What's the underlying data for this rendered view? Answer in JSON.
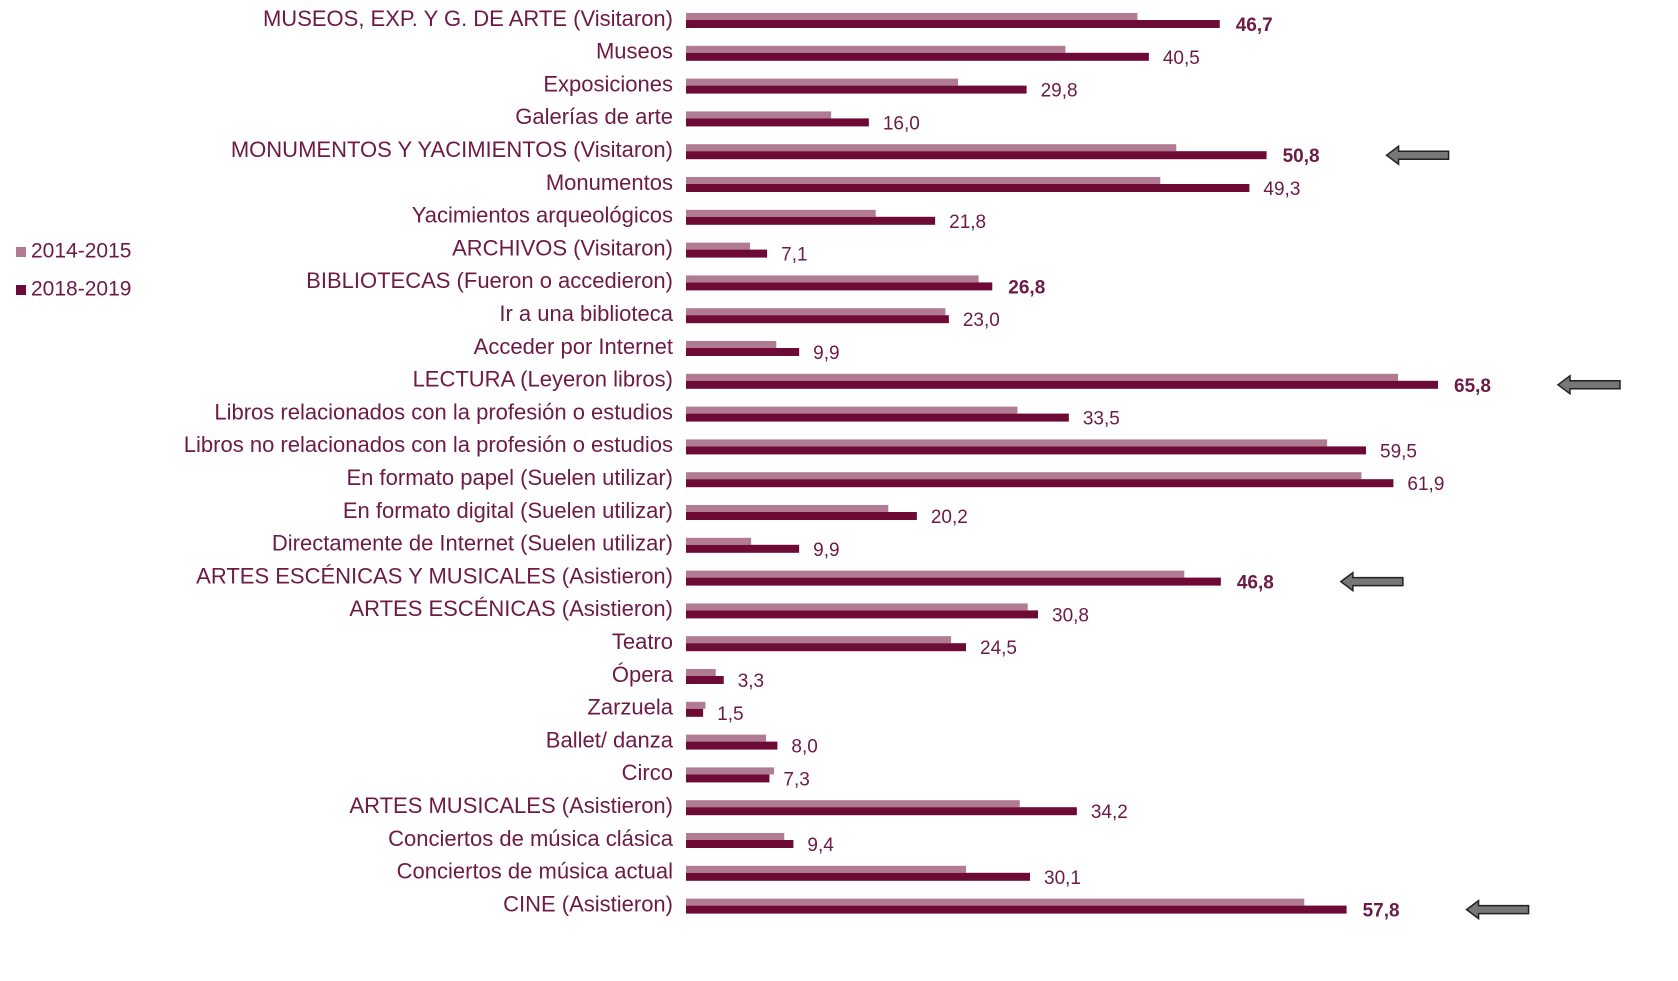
{
  "chart_data": {
    "type": "barh",
    "categories": [
      "MUSEOS, EXP. Y G. DE ARTE (Visitaron)",
      "Museos",
      "Exposiciones",
      "Galerías de arte",
      "MONUMENTOS Y YACIMIENTOS (Visitaron)",
      "Monumentos",
      "Yacimientos arqueológicos",
      "ARCHIVOS (Visitaron)",
      "BIBLIOTECAS (Fueron o accedieron)",
      "Ir a una biblioteca",
      "Acceder por Internet",
      "LECTURA (Leyeron libros)",
      "Libros relacionados con la profesión o estudios",
      "Libros no relacionados con la profesión o estudios",
      "En formato papel (Suelen utilizar)",
      "En formato digital (Suelen utilizar)",
      "Directamente de Internet (Suelen utilizar)",
      "ARTES ESCÉNICAS Y MUSICALES (Asistieron)",
      "ARTES ESCÉNICAS (Asistieron)",
      "Teatro",
      "Ópera",
      "Zarzuela",
      "Ballet/ danza",
      "Circo",
      "ARTES MUSICALES (Asistieron)",
      "Conciertos de música clásica",
      "Conciertos de música actual",
      "CINE (Asistieron)"
    ],
    "series": [
      {
        "name": "2014-2015",
        "color": "#b27b94",
        "values": [
          39.5,
          33.2,
          23.8,
          12.7,
          42.9,
          41.5,
          16.6,
          5.6,
          25.6,
          22.7,
          7.9,
          62.3,
          29.0,
          56.1,
          59.1,
          17.7,
          5.7,
          43.6,
          29.9,
          23.2,
          2.6,
          1.7,
          7.0,
          7.7,
          29.2,
          8.6,
          24.5,
          54.1
        ]
      },
      {
        "name": "2018-2019",
        "color": "#6d0a36",
        "values": [
          46.7,
          40.5,
          29.8,
          16.0,
          50.8,
          49.3,
          21.8,
          7.1,
          26.8,
          23.0,
          9.9,
          65.8,
          33.5,
          59.5,
          61.9,
          20.2,
          9.9,
          46.8,
          30.8,
          24.5,
          3.3,
          1.5,
          8.0,
          7.3,
          34.2,
          9.4,
          30.1,
          57.8
        ],
        "value_labels": [
          "46,7",
          "40,5",
          "29,8",
          "16,0",
          "50,8",
          "49,3",
          "21,8",
          "7,1",
          "26,8",
          "23,0",
          "9,9",
          "65,8",
          "33,5",
          "59,5",
          "61,9",
          "20,2",
          "9,9",
          "46,8",
          "30,8",
          "24,5",
          "3,3",
          "1,5",
          "8,0",
          "7,3",
          "34,2",
          "9,4",
          "30,1",
          "57,8"
        ]
      }
    ],
    "xlim": [
      0,
      77
    ],
    "bold_labels": [
      0,
      4,
      8,
      11,
      17,
      27
    ],
    "arrows": [
      4,
      11,
      17,
      27
    ]
  }
}
